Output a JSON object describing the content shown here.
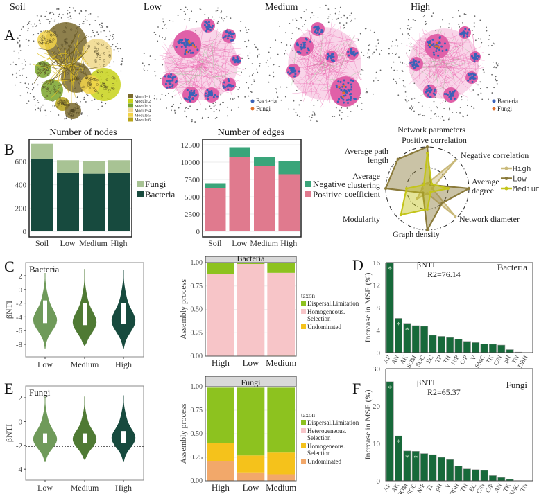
{
  "panel_letters": {
    "a": "A",
    "b": "B",
    "c": "C",
    "d": "D",
    "e": "E",
    "f": "F"
  },
  "networks": {
    "titles": [
      "Soil",
      "Low",
      "Medium",
      "High"
    ],
    "modules": [
      "Module 1",
      "Module 2",
      "Module 3",
      "Module 4",
      "Module 5",
      "Module 6"
    ],
    "module_colors": [
      "#7a6a2e",
      "#c8d21a",
      "#7aa52a",
      "#f0d88a",
      "#f3d34a",
      "#b8a418"
    ],
    "node_legend": [
      "Bacteria",
      "Fungi"
    ],
    "node_colors": {
      "bacteria": "#3a62b8",
      "fungi": "#e0702a",
      "edge": "#e85aa8"
    }
  },
  "chart_data": [
    {
      "id": "nodes",
      "type": "bar",
      "stacked": true,
      "title": "Number of nodes",
      "categories": [
        "Soil",
        "Low",
        "Medium",
        "High"
      ],
      "series": [
        {
          "name": "Bacteria",
          "values": [
            620,
            505,
            495,
            505
          ],
          "color": "#174a3e"
        },
        {
          "name": "Fungi",
          "values": [
            130,
            105,
            105,
            105
          ],
          "color": "#a8c394"
        }
      ],
      "yticks": [
        0,
        200,
        400,
        600
      ],
      "ylim": [
        0,
        760
      ],
      "legend": [
        "Fungi",
        "Bacteria"
      ]
    },
    {
      "id": "edges",
      "type": "bar",
      "stacked": true,
      "title": "Number of edges",
      "categories": [
        "Soil",
        "Low",
        "Medium",
        "High"
      ],
      "series": [
        {
          "name": "Positive",
          "values": [
            6300,
            10800,
            9400,
            8250
          ],
          "color": "#e07a8e"
        },
        {
          "name": "Negative",
          "values": [
            650,
            1350,
            1400,
            1850
          ],
          "color": "#3aa57a"
        }
      ],
      "yticks": [
        0,
        2500,
        5000,
        7500,
        10000,
        12500
      ],
      "ylim": [
        0,
        12900
      ],
      "legend": [
        "Negative",
        "Positive"
      ]
    },
    {
      "id": "radar",
      "type": "radar",
      "title": "Network parameters",
      "axes": [
        "Positive correlation",
        "Negative correlation",
        "Average degree",
        "Network diameter",
        "Graph density",
        "Modularity",
        "Average clustering coefficient",
        "Average path length"
      ],
      "axis_display": [
        [
          "Positive correlation"
        ],
        [
          "Negative correlation"
        ],
        [
          "Average",
          "degree"
        ],
        [
          "Network diameter"
        ],
        [
          "Graph density"
        ],
        [
          "Modularity"
        ],
        [
          "Average",
          "clustering",
          "coefficient"
        ],
        [
          "Average path",
          "length"
        ]
      ],
      "series": [
        {
          "name": "High",
          "color": "#c9b97a",
          "values": [
            0.1,
            0.95,
            0.1,
            0.95,
            0.1,
            0.35,
            0.1,
            0.15
          ]
        },
        {
          "name": "Low",
          "color": "#8a7a3a",
          "values": [
            1.0,
            0.1,
            1.0,
            0.5,
            1.0,
            0.15,
            1.0,
            1.0
          ]
        },
        {
          "name": "Medium",
          "color": "#c3c41a",
          "values": [
            0.85,
            0.15,
            0.5,
            0.1,
            0.5,
            0.9,
            0.5,
            0.1
          ]
        }
      ],
      "ylim": [
        0,
        1
      ]
    },
    {
      "id": "violin_bacteria",
      "type": "violin",
      "label": "Bacteria",
      "ylabel": "βNTI",
      "categories": [
        "Low",
        "Medium",
        "High"
      ],
      "colors": [
        "#6f9a5a",
        "#4f7a34",
        "#174a3e"
      ],
      "yticks": [
        2,
        0,
        -2,
        -4,
        -6,
        -8
      ],
      "ylim": [
        -9.8,
        3.5
      ],
      "threshold": -4,
      "box": [
        [
          -4.9,
          -1.6
        ],
        [
          -5.2,
          -2
        ],
        [
          -5,
          -2
        ]
      ],
      "range": [
        [
          -8.6,
          2.4
        ],
        [
          -8.2,
          3
        ],
        [
          -8.6,
          2.9
        ]
      ],
      "mode": [
        -4.5,
        -4.8,
        -4.6
      ]
    },
    {
      "id": "assembly_bacteria",
      "type": "bar",
      "stacked": true,
      "facet": "Bacteria",
      "ylabel": "Assembly process",
      "categories": [
        "High",
        "Low",
        "Medium"
      ],
      "legend_title": "taxon",
      "series": [
        {
          "name": "Undominated",
          "values": [
            0,
            0,
            0.005
          ],
          "color": "#f5c21b"
        },
        {
          "name": "Homogeneous. Selection",
          "values": [
            0.88,
            0.985,
            0.885
          ],
          "color": "#f7c5c8"
        },
        {
          "name": "Dispersal.Limitation",
          "values": [
            0.12,
            0.015,
            0.11
          ],
          "color": "#8dc21f"
        }
      ],
      "yticks": [
        0,
        0.25,
        0.5,
        0.75,
        1.0
      ],
      "ytick_labels": [
        "0.00",
        "0.25",
        "0.50",
        "0.75",
        "1.00"
      ],
      "ylim": [
        0,
        1
      ]
    },
    {
      "id": "rf_bacteria",
      "type": "bar",
      "panel": "D",
      "ylabel": "Increase in MSE (%)",
      "annotation": "βNTI",
      "r2": "R2=76.14",
      "label": "Bacteria",
      "categories": [
        "AP",
        "AN",
        "AK",
        "SOM",
        "SOC",
        "EC",
        "TP",
        "TH",
        "N/P",
        "C/P",
        "V",
        "SMC",
        "TK",
        "C/N",
        "pH",
        "TN",
        "DBH"
      ],
      "values": [
        16,
        6.1,
        5.2,
        4.8,
        4.7,
        3.1,
        2.9,
        2.7,
        2.4,
        2.0,
        1.8,
        1.55,
        1.5,
        1.35,
        0.55,
        0.1,
        0.02
      ],
      "significant": [
        "AP",
        "AN",
        "AK"
      ],
      "yticks": [
        0,
        4,
        8,
        12,
        16
      ],
      "ylim": [
        0,
        16
      ],
      "color": "#17693a"
    },
    {
      "id": "violin_fungi",
      "type": "violin",
      "label": "Fungi",
      "ylabel": "βNTI",
      "categories": [
        "Low",
        "Medium",
        "High"
      ],
      "colors": [
        "#6f9a5a",
        "#4f7a34",
        "#174a3e"
      ],
      "yticks": [
        2,
        0,
        -2,
        -4
      ],
      "ylim": [
        -5,
        2.5
      ],
      "threshold": -2.1,
      "box": [
        [
          -1.8,
          -1
        ],
        [
          -1.8,
          -1
        ],
        [
          -1.8,
          -0.8
        ]
      ],
      "range": [
        [
          -3.4,
          2.1
        ],
        [
          -3.2,
          2.1
        ],
        [
          -3.4,
          2.2
        ]
      ],
      "mode": [
        -1.5,
        -1.5,
        -1.4
      ]
    },
    {
      "id": "assembly_fungi",
      "type": "bar",
      "stacked": true,
      "facet": "Fungi",
      "ylabel": "Assembly process",
      "categories": [
        "High",
        "Low",
        "Medium"
      ],
      "legend_title": "taxon",
      "legend_order": [
        "Dispersal.Limitation",
        "Heterogeneous. Selection",
        "Homogeneous. Selection",
        "Undominated"
      ],
      "series": [
        {
          "name": "Undominated",
          "values": [
            0.21,
            0.09,
            0.07
          ],
          "color": "#f2a86a"
        },
        {
          "name": "Homogeneous. Selection",
          "values": [
            0.19,
            0.18,
            0.23
          ],
          "color": "#f5c21b"
        },
        {
          "name": "Heterogeneous. Selection",
          "values": [
            0,
            0,
            0
          ],
          "color": "#f7c5c8"
        },
        {
          "name": "Dispersal.Limitation",
          "values": [
            0.59,
            0.72,
            0.69
          ],
          "color": "#8dc21f"
        }
      ],
      "yticks": [
        0,
        0.25,
        0.5,
        0.75,
        1.0
      ],
      "ytick_labels": [
        "0.00",
        "0.25",
        "0.50",
        "0.75",
        "1.00"
      ],
      "ylim": [
        0,
        1
      ]
    },
    {
      "id": "rf_fungi",
      "type": "bar",
      "panel": "F",
      "ylabel": "Increase in MSE (%)",
      "annotation": "βNTI",
      "r2": "R2=65.37",
      "label": "Fungi",
      "categories": [
        "AP",
        "AK",
        "SOM",
        "SOC",
        "N/P",
        "TP",
        "pH",
        "V",
        "DBH",
        "TH",
        "EC",
        "C/N",
        "C/P",
        "AN",
        "TK",
        "SMC",
        "TN"
      ],
      "values": [
        26.5,
        12,
        8,
        7.9,
        7.3,
        7.0,
        6.3,
        5.7,
        4.0,
        3.2,
        3.0,
        2.8,
        1.4,
        0.9,
        0.4,
        0.05,
        0.02
      ],
      "significant": [
        "AP",
        "AK",
        "SOM",
        "SOC"
      ],
      "yticks": [
        0,
        10,
        20,
        30
      ],
      "ylim": [
        0,
        30
      ],
      "color": "#17693a"
    }
  ]
}
